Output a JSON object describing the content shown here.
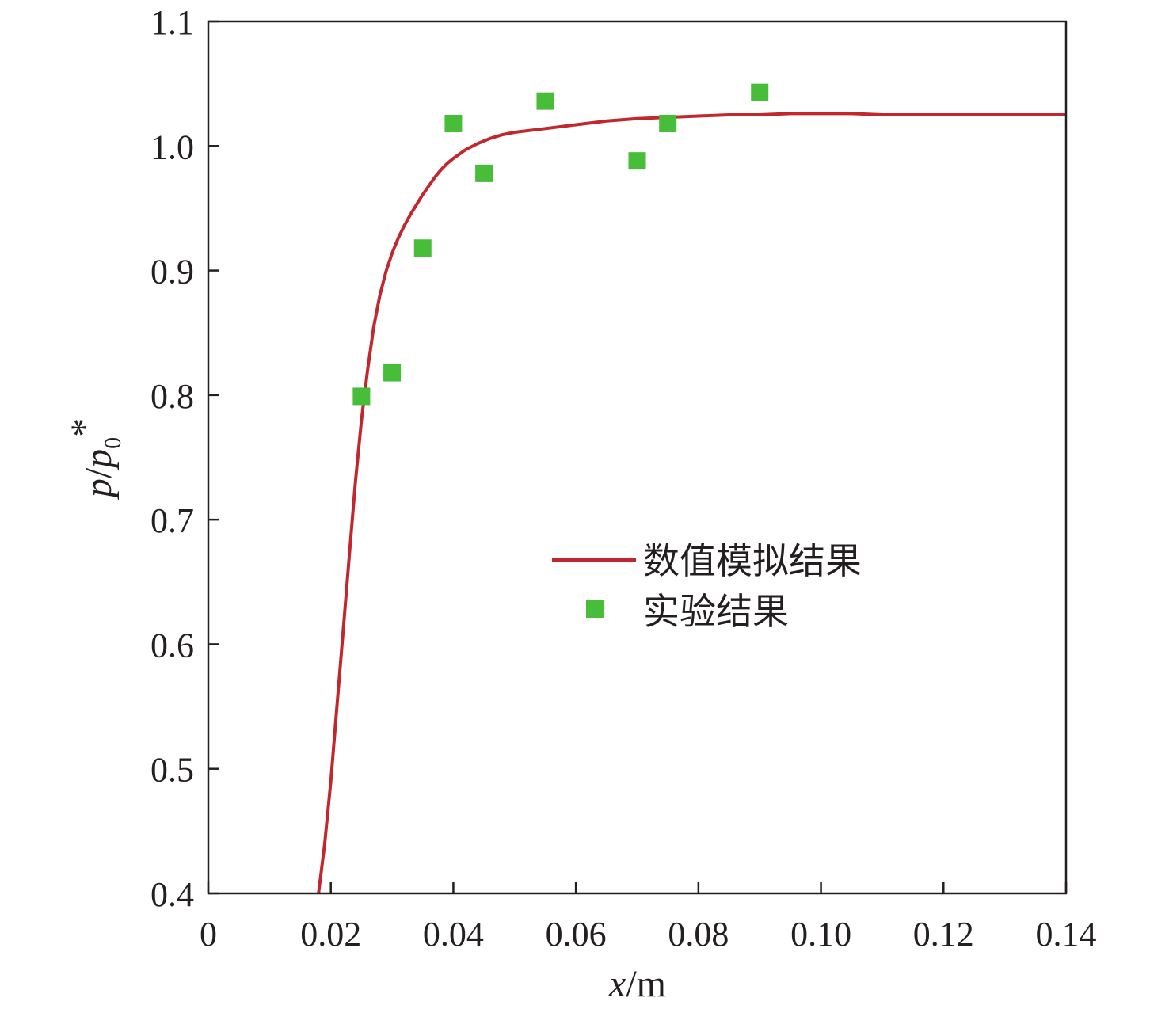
{
  "chart_data": {
    "type": "line",
    "title": "",
    "xlabel": {
      "var": "x",
      "unit": "/m"
    },
    "ylabel": {
      "p": "p",
      "slash": "/",
      "p0": "p",
      "sub": "0",
      "star": "*"
    },
    "xlim": [
      0,
      0.14
    ],
    "ylim": [
      0.4,
      1.1
    ],
    "x_ticks": [
      0,
      0.02,
      0.04,
      0.06,
      0.08,
      0.1,
      0.12,
      0.14
    ],
    "x_tick_labels": [
      "0",
      "0.02",
      "0.04",
      "0.06",
      "0.08",
      "0.10",
      "0.12",
      "0.14"
    ],
    "y_ticks": [
      0.4,
      0.5,
      0.6,
      0.7,
      0.8,
      0.9,
      1.0,
      1.1
    ],
    "y_tick_labels": [
      "0.4",
      "0.5",
      "0.6",
      "0.7",
      "0.8",
      "0.9",
      "1.0",
      "1.1"
    ],
    "grid": false,
    "legend_position": "center-right",
    "series": [
      {
        "name": "数值模拟结果",
        "kind": "line",
        "color": "#c1272d",
        "x": [
          0.018,
          0.019,
          0.02,
          0.021,
          0.022,
          0.023,
          0.024,
          0.025,
          0.026,
          0.027,
          0.028,
          0.029,
          0.03,
          0.031,
          0.032,
          0.033,
          0.034,
          0.035,
          0.036,
          0.037,
          0.038,
          0.039,
          0.04,
          0.042,
          0.044,
          0.046,
          0.048,
          0.05,
          0.055,
          0.06,
          0.065,
          0.07,
          0.075,
          0.08,
          0.085,
          0.09,
          0.095,
          0.1,
          0.105,
          0.11,
          0.115,
          0.12,
          0.125,
          0.13,
          0.135,
          0.14
        ],
        "y": [
          0.4,
          0.44,
          0.49,
          0.55,
          0.61,
          0.67,
          0.73,
          0.78,
          0.82,
          0.855,
          0.88,
          0.899,
          0.914,
          0.926,
          0.936,
          0.945,
          0.953,
          0.961,
          0.968,
          0.975,
          0.981,
          0.986,
          0.99,
          0.997,
          1.002,
          1.006,
          1.009,
          1.011,
          1.014,
          1.017,
          1.02,
          1.022,
          1.023,
          1.024,
          1.025,
          1.025,
          1.026,
          1.026,
          1.026,
          1.025,
          1.025,
          1.025,
          1.025,
          1.025,
          1.025,
          1.025
        ]
      },
      {
        "name": "实验结果",
        "kind": "scatter",
        "marker": "square",
        "color": "#47bd3a",
        "x": [
          0.025,
          0.03,
          0.035,
          0.04,
          0.045,
          0.055,
          0.07,
          0.075,
          0.09
        ],
        "y": [
          0.799,
          0.818,
          0.918,
          1.018,
          0.978,
          1.036,
          0.988,
          1.018,
          1.043
        ]
      }
    ]
  }
}
